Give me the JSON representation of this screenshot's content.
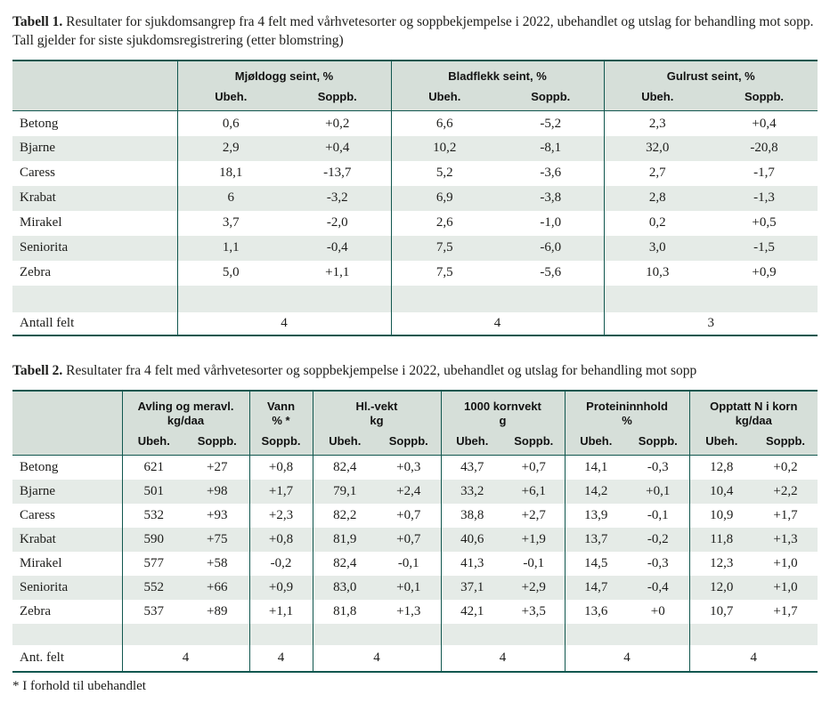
{
  "colors": {
    "border_dark": "#11574f",
    "header_bg": "#d6dfd9",
    "stripe_bg": "#e5ebe7",
    "text": "#1d1d1b"
  },
  "table1": {
    "title_bold": "Tabell 1.",
    "title_rest": " Resultater for sjukdomsangrep fra 4 felt med vårhvetesorter og soppbekjempelse i 2022, ubehandlet og utslag for behandling mot sopp. Tall gjelder for siste sjukdomsregistrering (etter blomstring)",
    "groups": [
      {
        "label": "Mjøldogg seint, %",
        "sub": [
          "Ubeh.",
          "Soppb."
        ]
      },
      {
        "label": "Bladflekk seint, %",
        "sub": [
          "Ubeh.",
          "Soppb."
        ]
      },
      {
        "label": "Gulrust seint, %",
        "sub": [
          "Ubeh.",
          "Soppb."
        ]
      }
    ],
    "rows": [
      {
        "name": "Betong",
        "values": [
          "0,6",
          "+0,2",
          "6,6",
          "-5,2",
          "2,3",
          "+0,4"
        ]
      },
      {
        "name": "Bjarne",
        "values": [
          "2,9",
          "+0,4",
          "10,2",
          "-8,1",
          "32,0",
          "-20,8"
        ]
      },
      {
        "name": "Caress",
        "values": [
          "18,1",
          "-13,7",
          "5,2",
          "-3,6",
          "2,7",
          "-1,7"
        ]
      },
      {
        "name": "Krabat",
        "values": [
          "6",
          "-3,2",
          "6,9",
          "-3,8",
          "2,8",
          "-1,3"
        ]
      },
      {
        "name": "Mirakel",
        "values": [
          "3,7",
          "-2,0",
          "2,6",
          "-1,0",
          "0,2",
          "+0,5"
        ]
      },
      {
        "name": "Seniorita",
        "values": [
          "1,1",
          "-0,4",
          "7,5",
          "-6,0",
          "3,0",
          "-1,5"
        ]
      },
      {
        "name": "Zebra",
        "values": [
          "5,0",
          "+1,1",
          "7,5",
          "-5,6",
          "10,3",
          "+0,9"
        ]
      }
    ],
    "footer": {
      "label": "Antall felt",
      "values": [
        "4",
        "4",
        "3"
      ]
    }
  },
  "table2": {
    "title_bold": "Tabell 2.",
    "title_rest": " Resultater fra 4 felt med vårhvetesorter og soppbekjempelse i 2022, ubehandlet og utslag for behandling mot sopp",
    "groups": [
      {
        "label": "Avling og meravl.",
        "unit": "kg/daa",
        "sub": [
          "Ubeh.",
          "Soppb."
        ]
      },
      {
        "label": "Vann",
        "unit": "% *",
        "sub": [
          "Soppb."
        ]
      },
      {
        "label": "Hl.-vekt",
        "unit": "kg",
        "sub": [
          "Ubeh.",
          "Soppb."
        ]
      },
      {
        "label": "1000 kornvekt",
        "unit": "g",
        "sub": [
          "Ubeh.",
          "Soppb."
        ]
      },
      {
        "label": "Proteininnhold",
        "unit": "%",
        "sub": [
          "Ubeh.",
          "Soppb."
        ]
      },
      {
        "label": "Opptatt N i korn",
        "unit": "kg/daa",
        "sub": [
          "Ubeh.",
          "Soppb."
        ]
      }
    ],
    "rows": [
      {
        "name": "Betong",
        "values": [
          "621",
          "+27",
          "+0,8",
          "82,4",
          "+0,3",
          "43,7",
          "+0,7",
          "14,1",
          "-0,3",
          "12,8",
          "+0,2"
        ]
      },
      {
        "name": "Bjarne",
        "values": [
          "501",
          "+98",
          "+1,7",
          "79,1",
          "+2,4",
          "33,2",
          "+6,1",
          "14,2",
          "+0,1",
          "10,4",
          "+2,2"
        ]
      },
      {
        "name": "Caress",
        "values": [
          "532",
          "+93",
          "+2,3",
          "82,2",
          "+0,7",
          "38,8",
          "+2,7",
          "13,9",
          "-0,1",
          "10,9",
          "+1,7"
        ]
      },
      {
        "name": "Krabat",
        "values": [
          "590",
          "+75",
          "+0,8",
          "81,9",
          "+0,7",
          "40,6",
          "+1,9",
          "13,7",
          "-0,2",
          "11,8",
          "+1,3"
        ]
      },
      {
        "name": "Mirakel",
        "values": [
          "577",
          "+58",
          "-0,2",
          "82,4",
          "-0,1",
          "41,3",
          "-0,1",
          "14,5",
          "-0,3",
          "12,3",
          "+1,0"
        ]
      },
      {
        "name": "Seniorita",
        "values": [
          "552",
          "+66",
          "+0,9",
          "83,0",
          "+0,1",
          "37,1",
          "+2,9",
          "14,7",
          "-0,4",
          "12,0",
          "+1,0"
        ]
      },
      {
        "name": "Zebra",
        "values": [
          "537",
          "+89",
          "+1,1",
          "81,8",
          "+1,3",
          "42,1",
          "+3,5",
          "13,6",
          "+0",
          "10,7",
          "+1,7"
        ]
      }
    ],
    "footer": {
      "label": "Ant. felt",
      "values": [
        "4",
        "4",
        "4",
        "4",
        "4",
        "4"
      ]
    },
    "footnote": "* I forhold til ubehandlet"
  }
}
